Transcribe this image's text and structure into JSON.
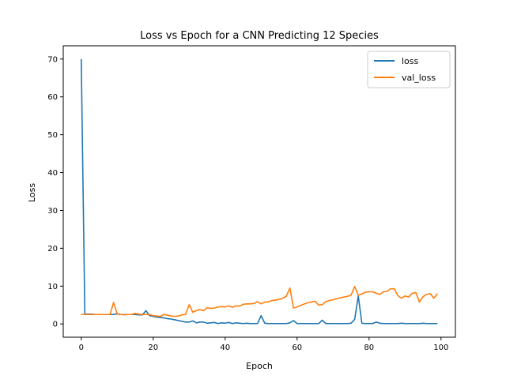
{
  "chart_data": {
    "type": "line",
    "title": "Loss vs Epoch for a CNN Predicting 12 Species",
    "xlabel": "Epoch",
    "ylabel": "Loss",
    "xlim": [
      -5.0,
      104.0
    ],
    "ylim": [
      -3.5,
      73.5
    ],
    "xticks": [
      0,
      20,
      40,
      60,
      80,
      100
    ],
    "yticks": [
      0,
      10,
      20,
      30,
      40,
      50,
      60,
      70
    ],
    "grid": false,
    "legend_position": "upper-right",
    "x": [
      0,
      1,
      2,
      3,
      4,
      5,
      6,
      7,
      8,
      9,
      10,
      11,
      12,
      13,
      14,
      15,
      16,
      17,
      18,
      19,
      20,
      21,
      22,
      23,
      24,
      25,
      26,
      27,
      28,
      29,
      30,
      31,
      32,
      33,
      34,
      35,
      36,
      37,
      38,
      39,
      40,
      41,
      42,
      43,
      44,
      45,
      46,
      47,
      48,
      49,
      50,
      51,
      52,
      53,
      54,
      55,
      56,
      57,
      58,
      59,
      60,
      61,
      62,
      63,
      64,
      65,
      66,
      67,
      68,
      69,
      70,
      71,
      72,
      73,
      74,
      75,
      76,
      77,
      78,
      79,
      80,
      81,
      82,
      83,
      84,
      85,
      86,
      87,
      88,
      89,
      90,
      91,
      92,
      93,
      94,
      95,
      96,
      97,
      98,
      99
    ],
    "series": [
      {
        "name": "loss",
        "color": "#1f77b4",
        "values": [
          70.0,
          2.6,
          2.6,
          2.6,
          2.5,
          2.5,
          2.5,
          2.5,
          2.5,
          2.5,
          2.7,
          2.5,
          2.5,
          2.5,
          2.5,
          2.5,
          2.4,
          2.4,
          3.5,
          2.2,
          2.0,
          1.8,
          1.7,
          1.6,
          1.4,
          1.3,
          1.1,
          0.9,
          0.7,
          0.5,
          0.5,
          0.8,
          0.3,
          0.5,
          0.5,
          0.2,
          0.3,
          0.4,
          0.1,
          0.3,
          0.2,
          0.4,
          0.1,
          0.3,
          0.2,
          0.1,
          0.2,
          0.1,
          0.1,
          0.1,
          2.2,
          0.2,
          0.1,
          0.1,
          0.1,
          0.1,
          0.1,
          0.1,
          0.3,
          0.9,
          0.1,
          0.1,
          0.1,
          0.1,
          0.1,
          0.1,
          0.1,
          1.0,
          0.1,
          0.1,
          0.1,
          0.1,
          0.1,
          0.1,
          0.1,
          0.2,
          1.2,
          7.4,
          0.2,
          0.1,
          0.1,
          0.1,
          0.5,
          0.2,
          0.1,
          0.1,
          0.1,
          0.1,
          0.1,
          0.2,
          0.1,
          0.1,
          0.1,
          0.1,
          0.1,
          0.2,
          0.1,
          0.1,
          0.1,
          0.1
        ]
      },
      {
        "name": "val_loss",
        "color": "#ff7f0e",
        "values": [
          2.5,
          2.5,
          2.5,
          2.5,
          2.5,
          2.5,
          2.5,
          2.5,
          2.5,
          5.7,
          2.6,
          2.5,
          2.4,
          2.5,
          2.5,
          2.8,
          2.6,
          2.5,
          2.5,
          2.5,
          2.2,
          2.1,
          2.0,
          2.5,
          2.3,
          2.1,
          2.0,
          2.1,
          2.4,
          2.5,
          5.1,
          3.1,
          3.5,
          3.8,
          3.5,
          4.3,
          4.1,
          4.2,
          4.5,
          4.6,
          4.5,
          4.8,
          4.4,
          4.8,
          4.7,
          5.2,
          5.3,
          5.3,
          5.4,
          5.9,
          5.3,
          5.8,
          5.8,
          6.2,
          6.3,
          6.5,
          6.8,
          7.3,
          9.5,
          4.2,
          4.5,
          4.9,
          5.3,
          5.6,
          5.8,
          6.0,
          5.0,
          5.1,
          5.9,
          6.2,
          6.4,
          6.7,
          6.9,
          7.1,
          7.3,
          7.6,
          9.9,
          7.6,
          7.9,
          8.4,
          8.5,
          8.5,
          8.1,
          7.8,
          8.5,
          8.6,
          9.3,
          9.3,
          7.5,
          6.8,
          7.4,
          7.1,
          8.1,
          8.3,
          5.8,
          7.2,
          7.8,
          8.0,
          6.8,
          8.0
        ]
      }
    ]
  }
}
